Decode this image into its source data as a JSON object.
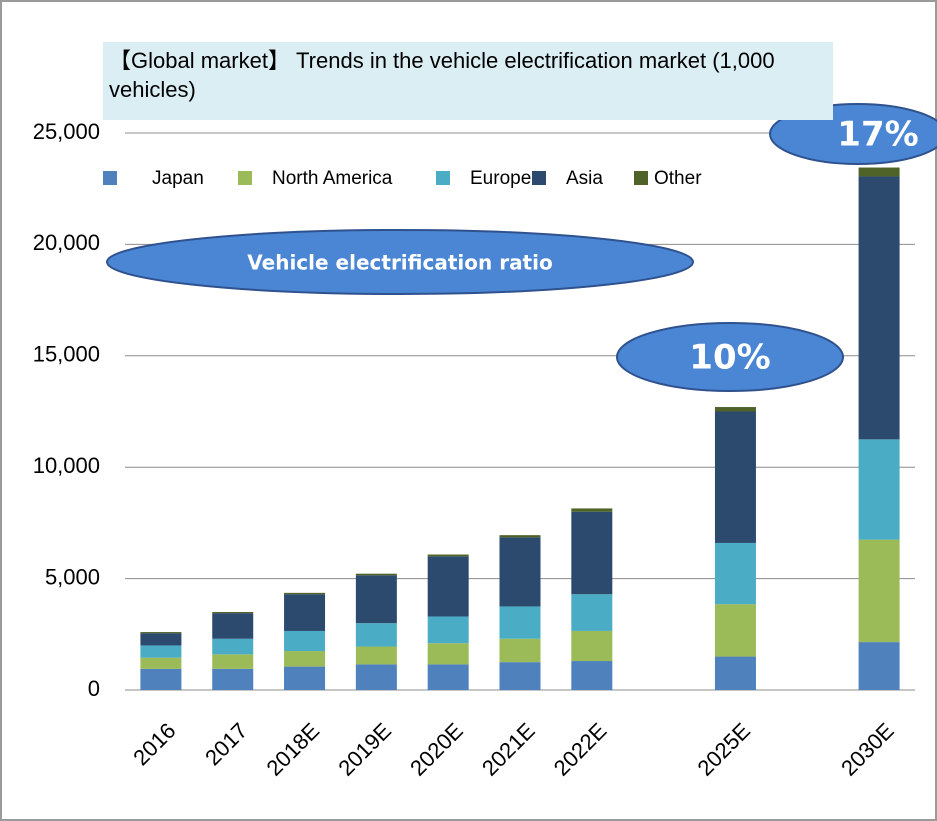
{
  "chart_data": {
    "type": "stacked_bar",
    "title": "【Global market】 Trends in the vehicle electrification market (1,000 vehicles)",
    "categories": [
      "2016",
      "2017",
      "2018E",
      "2019E",
      "2020E",
      "2021E",
      "2022E",
      null,
      "2025E",
      null,
      "2030E"
    ],
    "series": [
      {
        "name": "Japan",
        "color": "#4f81bd",
        "values": [
          950,
          950,
          1050,
          1150,
          1150,
          1250,
          1300,
          null,
          1500,
          null,
          2150
        ]
      },
      {
        "name": "North America",
        "color": "#9bbb59",
        "values": [
          500,
          650,
          700,
          800,
          950,
          1050,
          1350,
          null,
          2350,
          null,
          4600
        ]
      },
      {
        "name": "Europe",
        "color": "#4bacc6",
        "values": [
          550,
          700,
          900,
          1050,
          1200,
          1450,
          1650,
          null,
          2750,
          null,
          4500
        ]
      },
      {
        "name": "Asia",
        "color": "#2c4a6e",
        "values": [
          550,
          1150,
          1650,
          2150,
          2700,
          3100,
          3700,
          null,
          5900,
          null,
          11800
        ]
      },
      {
        "name": "Other",
        "color": "#4f6228",
        "values": [
          50,
          50,
          60,
          70,
          80,
          100,
          150,
          null,
          200,
          null,
          400
        ]
      }
    ],
    "ylim": [
      0,
      25000
    ],
    "yticks": [
      0,
      {
        "value": 5000,
        "label": "5,000"
      },
      {
        "value": 10000,
        "label": "10,000"
      },
      {
        "value": 15000,
        "label": "15,000"
      },
      {
        "value": 20000,
        "label": "20,000"
      },
      {
        "value": 25000,
        "label": "25,000"
      }
    ],
    "grid": true,
    "annotations": [
      "Vehicle electrification ratio",
      "10%",
      "17%"
    ]
  }
}
